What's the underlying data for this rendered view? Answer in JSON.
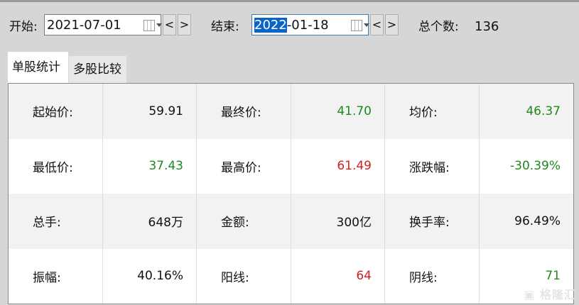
{
  "toolbar": {
    "start_label": "开始:",
    "start_date": "2021-07-01",
    "end_label": "结束:",
    "end_date_selected": "2022",
    "end_date_rest": "-01-18",
    "prev": "<",
    "next": ">",
    "count_label": "总个数:",
    "count": "136"
  },
  "tabs": [
    {
      "label": "单股统计",
      "active": true
    },
    {
      "label": "多股比较",
      "active": false
    }
  ],
  "stats": [
    [
      {
        "label": "起始价:",
        "value": "59.91",
        "color": "black"
      },
      {
        "label": "最终价:",
        "value": "41.70",
        "color": "green"
      },
      {
        "label": "均价:",
        "value": "46.37",
        "color": "green"
      }
    ],
    [
      {
        "label": "最低价:",
        "value": "37.43",
        "color": "green"
      },
      {
        "label": "最高价:",
        "value": "61.49",
        "color": "red"
      },
      {
        "label": "涨跌幅:",
        "value": "-30.39%",
        "color": "green"
      }
    ],
    [
      {
        "label": "总手:",
        "value": "648万",
        "color": "black"
      },
      {
        "label": "金额:",
        "value": "300亿",
        "color": "black"
      },
      {
        "label": "换手率:",
        "value": "96.49%",
        "color": "black"
      }
    ],
    [
      {
        "label": "振幅:",
        "value": "40.16%",
        "color": "black"
      },
      {
        "label": "阳线:",
        "value": "64",
        "color": "red"
      },
      {
        "label": "阴线:",
        "value": "71",
        "color": "green"
      }
    ]
  ],
  "watermark": "格隆汇"
}
